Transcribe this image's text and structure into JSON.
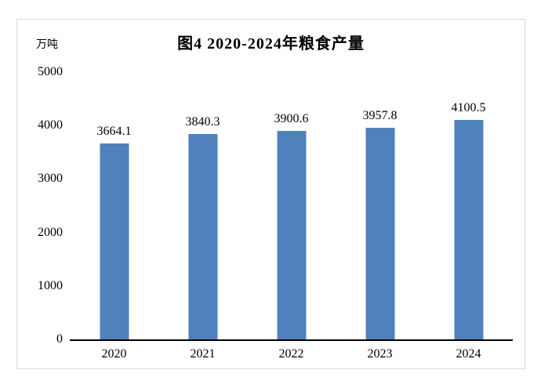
{
  "chart_data": {
    "type": "bar",
    "title": "图4 2020-2024年粮食产量",
    "unit_label": "万吨",
    "categories": [
      "2020",
      "2021",
      "2022",
      "2023",
      "2024"
    ],
    "values": [
      3664.1,
      3840.3,
      3900.6,
      3957.8,
      4100.5
    ],
    "data_labels": [
      "3664.1",
      "3840.3",
      "3900.6",
      "3957.8",
      "4100.5"
    ],
    "y_ticks": [
      5000,
      4000,
      3000,
      2000,
      1000,
      0
    ],
    "ylim": [
      0,
      5000
    ],
    "grid": false,
    "legend": "none",
    "bar_color": "#4f81bd",
    "axis_line_color": "#000000",
    "border_color": "#d9d9d9"
  }
}
